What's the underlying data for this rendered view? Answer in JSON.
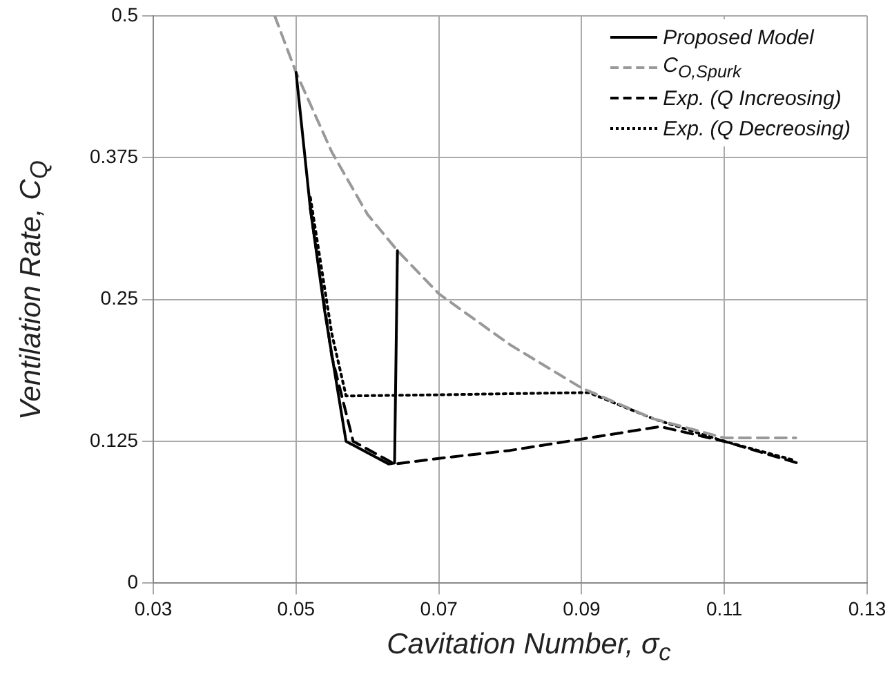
{
  "chart_data": {
    "type": "line",
    "xlabel": "Cavitation Number, σ$_{c}$",
    "ylabel": "Ventilation Rate, C$_{Q}$",
    "xlim": [
      0.03,
      0.13
    ],
    "xticks": [
      0.03,
      0.05,
      0.07,
      0.09,
      0.11,
      0.13
    ],
    "ylim": [
      0,
      0.5
    ],
    "yticks": [
      0,
      0.125,
      0.25,
      0.375,
      0.5
    ],
    "grid": true,
    "legend": "top right",
    "marker": "none",
    "series": [
      {
        "name": "Proposed Model",
        "color": "#000000",
        "line_style": "solid",
        "x": [
          0.05,
          0.052,
          0.054,
          0.057,
          0.06,
          0.063,
          0.0638,
          0.0642
        ],
        "values": [
          0.45,
          0.33,
          0.24,
          0.125,
          0.115,
          0.105,
          0.106,
          0.293
        ]
      },
      {
        "name": "C$_{O,Spurk}$",
        "color": "#999999",
        "line_style": "dashed",
        "x": [
          0.047,
          0.05,
          0.055,
          0.06,
          0.0642,
          0.07,
          0.08,
          0.09,
          0.1,
          0.11,
          0.12
        ],
        "values": [
          0.5,
          0.45,
          0.38,
          0.325,
          0.293,
          0.255,
          0.21,
          0.172,
          0.145,
          0.128,
          0.128
        ]
      },
      {
        "name": "Exp. (Q Increosing)",
        "color": "#000000",
        "line_style": "dashed",
        "x": [
          0.052,
          0.055,
          0.058,
          0.0638,
          0.07,
          0.08,
          0.09,
          0.101,
          0.11,
          0.1207
        ],
        "values": [
          0.33,
          0.2,
          0.125,
          0.105,
          0.11,
          0.117,
          0.127,
          0.138,
          0.125,
          0.105
        ]
      },
      {
        "name": "Exp. (Q Decreosing)",
        "color": "#000000",
        "line_style": "dotted",
        "x": [
          0.052,
          0.055,
          0.057,
          0.07,
          0.08,
          0.091,
          0.1,
          0.11,
          0.12
        ],
        "values": [
          0.34,
          0.22,
          0.165,
          0.166,
          0.167,
          0.168,
          0.145,
          0.125,
          0.108
        ]
      }
    ]
  }
}
